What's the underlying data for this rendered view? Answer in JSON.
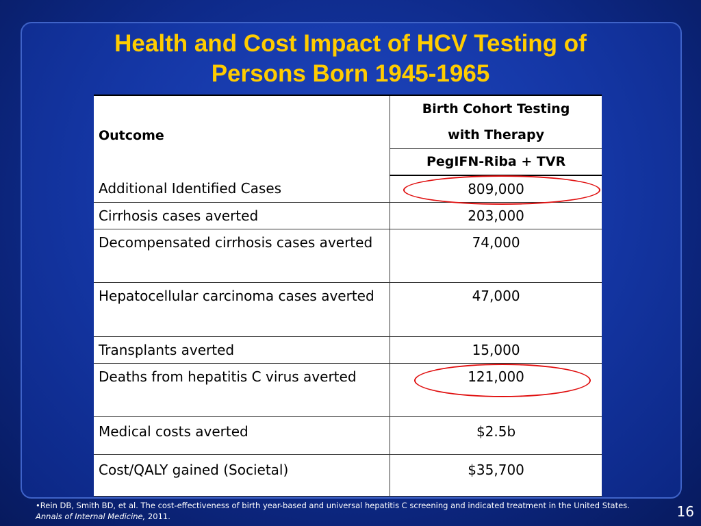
{
  "slide": {
    "title_line1": "Health and Cost Impact of HCV Testing of",
    "title_line2": "Persons Born 1945-1965",
    "page_number": "16"
  },
  "table": {
    "outcome_header": "Outcome",
    "col_header_line1": "Birth Cohort Testing",
    "col_header_line2": "with Therapy",
    "col_subheader": "PegIFN-Riba + TVR",
    "rows": [
      {
        "outcome": "Additional Identified Cases",
        "value": "809,000"
      },
      {
        "outcome": "Cirrhosis cases averted",
        "value": "203,000"
      },
      {
        "outcome": "Decompensated cirrhosis cases averted",
        "value": "74,000"
      },
      {
        "outcome": "Hepatocellular carcinoma cases averted",
        "value": "47,000"
      },
      {
        "outcome": "Transplants averted",
        "value": "15,000"
      },
      {
        "outcome": "Deaths from hepatitis C virus averted",
        "value": "121,000"
      },
      {
        "outcome": "Medical costs averted",
        "value": "$2.5b"
      },
      {
        "outcome": "Cost/QALY gained (Societal)",
        "value": "$35,700"
      }
    ],
    "highlight_color": "#e01010"
  },
  "footnote": {
    "text": "•Rein DB, Smith BD, et al. The cost-effectiveness of birth year-based and universal hepatitis C screening and indicated treatment in the United States. ",
    "journal": "Annals of Internal Medicine,",
    "year": " 2011."
  },
  "colors": {
    "title": "#ffcc00",
    "background": "#1436a4"
  }
}
